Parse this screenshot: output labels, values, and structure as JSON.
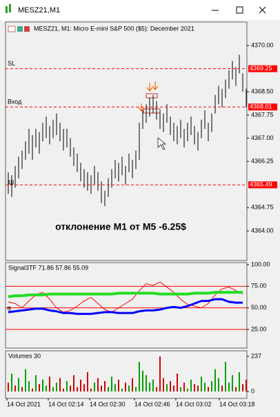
{
  "window": {
    "title": "MESZ21,M1"
  },
  "chart_data": [
    {
      "type": "ohlc",
      "title": "MESZ21, M1:  Micro E-mini S&P 500 ($5): December 2021",
      "color": "#000000",
      "high": [
        4365.9,
        4365.8,
        4366.1,
        4366.4,
        4366.6,
        4366.9,
        4367.3,
        4367.1,
        4367.3,
        4367.2,
        4367.5,
        4367.7,
        4367.4,
        4367.6,
        4367.8,
        4367.5,
        4367.3,
        4367.3,
        4367.0,
        4366.7,
        4366.5,
        4366.2,
        4366.0,
        4365.9,
        4365.8,
        4366.1,
        4365.9,
        4365.6,
        4365.3,
        4365.7,
        4366.0,
        4366.3,
        4366.2,
        4366.4,
        4366.1,
        4366.5,
        4366.3,
        4366.6,
        4367.5,
        4367.9,
        4368.1,
        4368.3,
        4368.4,
        4368.2,
        4367.9,
        4367.8,
        4368.1,
        4367.7,
        4367.5,
        4367.4,
        4367.6,
        4367.3,
        4367.5,
        4367.7,
        4367.4,
        4367.2,
        4367.6,
        4367.9,
        4367.5,
        4367.8,
        4368.4,
        4368.7,
        4368.6,
        4368.9,
        4369.2,
        4369.5,
        4369.3,
        4369.7,
        4369.1,
        4368.6
      ],
      "low": [
        4365.2,
        4365.1,
        4365.4,
        4365.7,
        4366.0,
        4366.3,
        4366.5,
        4366.3,
        4366.7,
        4366.5,
        4366.9,
        4367.0,
        4366.8,
        4367.0,
        4367.1,
        4366.9,
        4366.6,
        4366.7,
        4366.4,
        4366.1,
        4365.9,
        4365.6,
        4365.4,
        4365.3,
        4365.2,
        4365.5,
        4365.3,
        4364.9,
        4364.8,
        4365.1,
        4365.4,
        4365.7,
        4365.6,
        4365.8,
        4365.5,
        4365.9,
        4365.7,
        4366.0,
        4366.3,
        4367.3,
        4367.5,
        4367.7,
        4367.8,
        4367.6,
        4367.3,
        4367.2,
        4367.5,
        4367.1,
        4366.9,
        4366.8,
        4367.0,
        4366.7,
        4366.9,
        4367.1,
        4366.8,
        4366.6,
        4367.0,
        4367.3,
        4366.9,
        4367.2,
        4367.8,
        4368.1,
        4368.0,
        4368.3,
        4368.6,
        4368.9,
        4368.7,
        4369.1,
        4368.5,
        4368.0
      ],
      "ylim": [
        4363.04,
        4370.76
      ],
      "yticks": [
        {
          "value": 4370,
          "label": "4370.00"
        },
        {
          "value": 4368.5,
          "label": "4368.50"
        },
        {
          "value": 4367.75,
          "label": "4367.75"
        },
        {
          "value": 4367,
          "label": "4367.00"
        },
        {
          "value": 4366.25,
          "label": "4366.25"
        },
        {
          "value": 4364.75,
          "label": "4364.75"
        },
        {
          "value": 4364,
          "label": "4364.00"
        }
      ],
      "levels": [
        {
          "name": "SL",
          "value": 4369.25,
          "label": "4369.25",
          "color": "#ff0000"
        },
        {
          "name": "Вход",
          "value": 4368.01,
          "label": "4368.01",
          "color": "#ff0000"
        },
        {
          "value": 4365.49,
          "label": "4365.49",
          "color": "#ff0000"
        }
      ],
      "annotation": "отклонение M1 от M5 -6.25$"
    },
    {
      "type": "line",
      "title": "Signal3TF 71.86 57.86 55.09",
      "series": [
        {
          "color": "#ff0000",
          "width": 1,
          "values": [
            57,
            55,
            50,
            58,
            65,
            68,
            60,
            50,
            45,
            47,
            52,
            58,
            62,
            55,
            48,
            45,
            50,
            55,
            60,
            70,
            78,
            76,
            80,
            74,
            68,
            60,
            54,
            52,
            50,
            55,
            65,
            72,
            74,
            70,
            66
          ]
        },
        {
          "color": "#22dd22",
          "width": 4,
          "values": [
            63,
            64,
            64,
            65,
            65,
            65,
            66,
            66,
            66,
            66,
            66,
            66,
            66,
            66,
            66,
            66,
            67,
            67,
            67,
            67,
            67,
            67,
            66,
            66,
            66,
            66,
            66,
            67,
            67,
            67,
            68,
            68,
            68,
            68,
            68
          ]
        },
        {
          "color": "#0000ff",
          "width": 3,
          "values": [
            45,
            46,
            47,
            48,
            49,
            49,
            47,
            46,
            44,
            44,
            43,
            43,
            43,
            44,
            45,
            45,
            44,
            44,
            44,
            46,
            47,
            47,
            48,
            50,
            51,
            50,
            52,
            55,
            58,
            58,
            60,
            60,
            57,
            56,
            56
          ]
        }
      ],
      "ylim": [
        3.4,
        102.4
      ],
      "yticks": [
        {
          "value": 100,
          "label": "100.00"
        },
        {
          "value": 75,
          "label": "75.00"
        },
        {
          "value": 50,
          "label": "50.00"
        },
        {
          "value": 25,
          "label": "25.00"
        }
      ],
      "levels": [
        {
          "value": 75,
          "color": "#ff0000"
        },
        {
          "value": 50,
          "color": "#ff0000"
        },
        {
          "value": 25,
          "color": "#ff0000"
        }
      ]
    },
    {
      "type": "bar",
      "title": "Volumes 30",
      "values": [
        60,
        120,
        40,
        90,
        30,
        150,
        70,
        20,
        110,
        50,
        80,
        40,
        100,
        30,
        60,
        90,
        20,
        70,
        40,
        110,
        30,
        80,
        50,
        130,
        20,
        60,
        90,
        40,
        70,
        30,
        100,
        50,
        80,
        20,
        60,
        40,
        90,
        30,
        200,
        140,
        110,
        60,
        80,
        30,
        237,
        90,
        50,
        70,
        40,
        120,
        30,
        60,
        20,
        80,
        50,
        40,
        100,
        60,
        30,
        70,
        150,
        90,
        40,
        200,
        60,
        110,
        30,
        130,
        50,
        80
      ],
      "colors": [
        "#d00000",
        "#00a000",
        "#d00000",
        "#00a000",
        "#d00000",
        "#00a000",
        "#00a000",
        "#d00000",
        "#00a000",
        "#d00000",
        "#00a000",
        "#00a000",
        "#d00000",
        "#00a000",
        "#00a000",
        "#d00000",
        "#d00000",
        "#00a000",
        "#d00000",
        "#d00000",
        "#d00000",
        "#d00000",
        "#d00000",
        "#d00000",
        "#d00000",
        "#00a000",
        "#d00000",
        "#d00000",
        "#d00000",
        "#00a000",
        "#00a000",
        "#00a000",
        "#d00000",
        "#00a000",
        "#d00000",
        "#00a000",
        "#d00000",
        "#00a000",
        "#00a000",
        "#00a000",
        "#00a000",
        "#00a000",
        "#00a000",
        "#d00000",
        "#d00000",
        "#d00000",
        "#00a000",
        "#d00000",
        "#d00000",
        "#d00000",
        "#00a000",
        "#d00000",
        "#00a000",
        "#00a000",
        "#d00000",
        "#d00000",
        "#00a000",
        "#00a000",
        "#d00000",
        "#00a000",
        "#00a000",
        "#00a000",
        "#d00000",
        "#00a000",
        "#00a000",
        "#00a000",
        "#d00000",
        "#00a000",
        "#d00000",
        "#d00000"
      ],
      "ylim": [
        0,
        274
      ],
      "yticks": [
        237,
        0
      ]
    }
  ],
  "time_axis": [
    "14 Oct 2021",
    "14 Oct 02:14",
    "14 Oct 02:30",
    "14 Oct 02:46",
    "14 Oct 03:02",
    "14 Oct 03:18"
  ]
}
